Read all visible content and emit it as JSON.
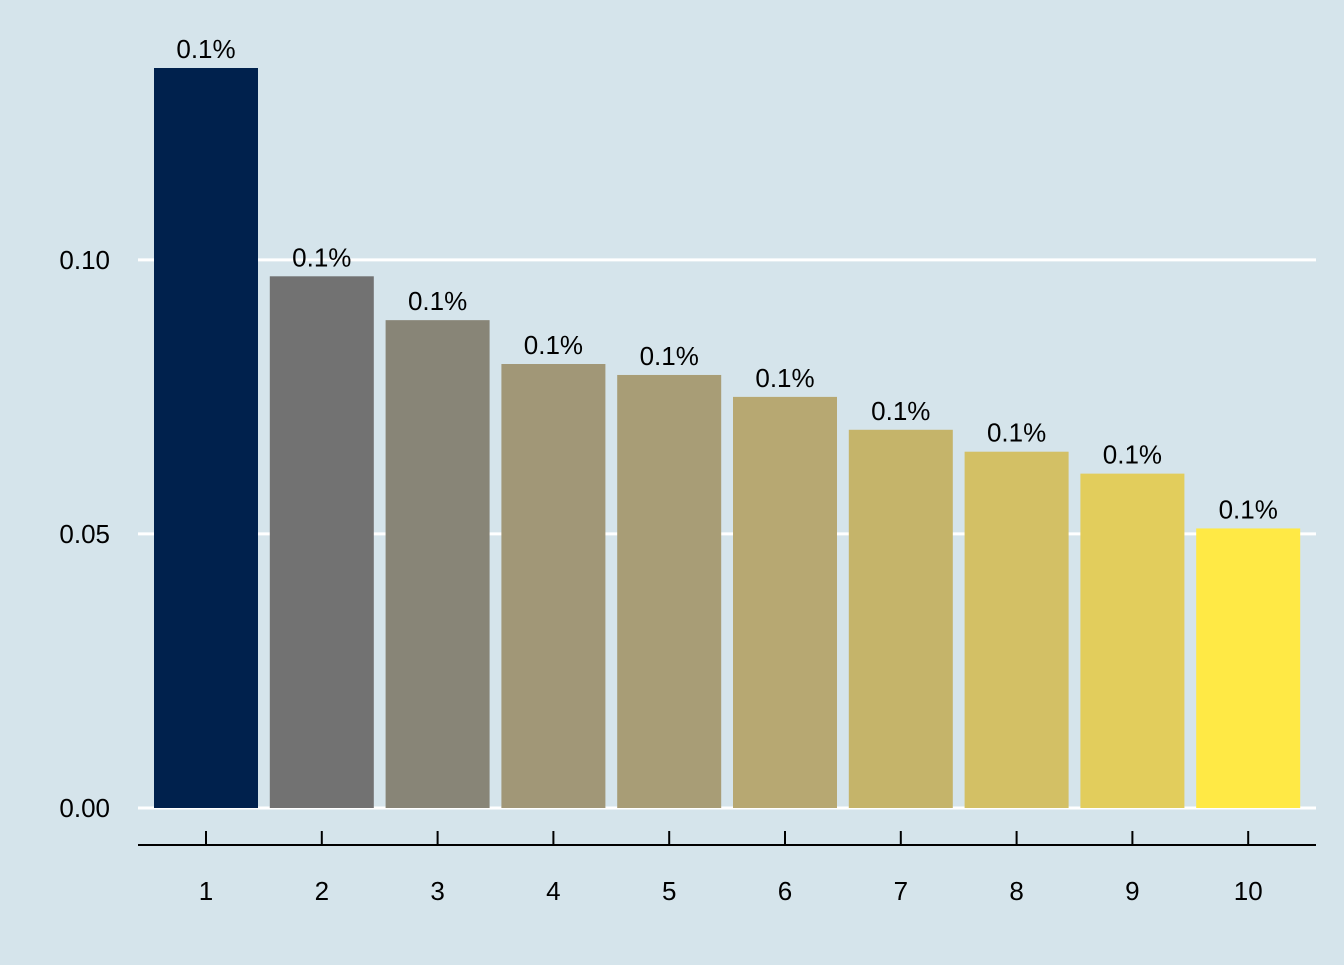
{
  "chart_data": {
    "type": "bar",
    "categories": [
      "1",
      "2",
      "3",
      "4",
      "5",
      "6",
      "7",
      "8",
      "9",
      "10"
    ],
    "values": [
      0.135,
      0.097,
      0.089,
      0.081,
      0.079,
      0.075,
      0.069,
      0.065,
      0.061,
      0.051
    ],
    "data_labels": [
      "0.1%",
      "0.1%",
      "0.1%",
      "0.1%",
      "0.1%",
      "0.1%",
      "0.1%",
      "0.1%",
      "0.1%",
      "0.1%"
    ],
    "colors": [
      "#00214d",
      "#727272",
      "#888577",
      "#a19777",
      "#a89d76",
      "#b7a872",
      "#c5b46a",
      "#d3c065",
      "#e2cd5c",
      "#ffe945"
    ],
    "title": "",
    "xlabel": "",
    "ylabel": "",
    "ylim": [
      0,
      0.135
    ],
    "yticks": [
      0.0,
      0.05,
      0.1
    ],
    "ytick_labels": [
      "0.00",
      "0.05",
      "0.10"
    ],
    "grid": "horizontal major",
    "legend": "none",
    "background": "#d5e4eb",
    "gridline_color": "#ffffff",
    "axis_color": "#000000"
  }
}
